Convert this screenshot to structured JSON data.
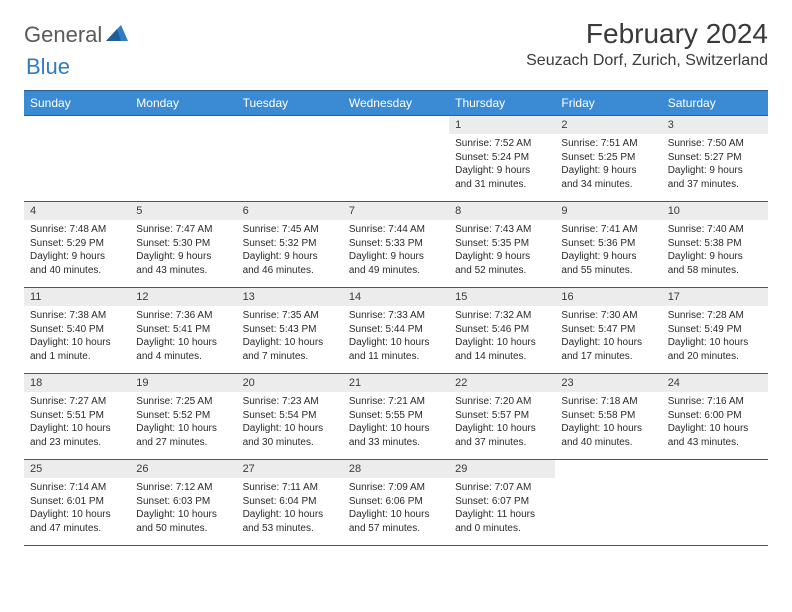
{
  "logo": {
    "text1": "General",
    "text2": "Blue"
  },
  "title": "February 2024",
  "location": "Seuzach Dorf, Zurich, Switzerland",
  "colors": {
    "header_bg": "#3b8bd4",
    "header_text": "#ffffff",
    "border": "#2b5e8e",
    "daynum_bg": "#ececec",
    "body_text": "#2a2a2a",
    "logo_gray": "#5a5a5a",
    "logo_blue": "#2f7cc4"
  },
  "day_headers": [
    "Sunday",
    "Monday",
    "Tuesday",
    "Wednesday",
    "Thursday",
    "Friday",
    "Saturday"
  ],
  "weeks": [
    [
      null,
      null,
      null,
      null,
      {
        "n": "1",
        "sr": "7:52 AM",
        "ss": "5:24 PM",
        "dl": "9 hours and 31 minutes."
      },
      {
        "n": "2",
        "sr": "7:51 AM",
        "ss": "5:25 PM",
        "dl": "9 hours and 34 minutes."
      },
      {
        "n": "3",
        "sr": "7:50 AM",
        "ss": "5:27 PM",
        "dl": "9 hours and 37 minutes."
      }
    ],
    [
      {
        "n": "4",
        "sr": "7:48 AM",
        "ss": "5:29 PM",
        "dl": "9 hours and 40 minutes."
      },
      {
        "n": "5",
        "sr": "7:47 AM",
        "ss": "5:30 PM",
        "dl": "9 hours and 43 minutes."
      },
      {
        "n": "6",
        "sr": "7:45 AM",
        "ss": "5:32 PM",
        "dl": "9 hours and 46 minutes."
      },
      {
        "n": "7",
        "sr": "7:44 AM",
        "ss": "5:33 PM",
        "dl": "9 hours and 49 minutes."
      },
      {
        "n": "8",
        "sr": "7:43 AM",
        "ss": "5:35 PM",
        "dl": "9 hours and 52 minutes."
      },
      {
        "n": "9",
        "sr": "7:41 AM",
        "ss": "5:36 PM",
        "dl": "9 hours and 55 minutes."
      },
      {
        "n": "10",
        "sr": "7:40 AM",
        "ss": "5:38 PM",
        "dl": "9 hours and 58 minutes."
      }
    ],
    [
      {
        "n": "11",
        "sr": "7:38 AM",
        "ss": "5:40 PM",
        "dl": "10 hours and 1 minute."
      },
      {
        "n": "12",
        "sr": "7:36 AM",
        "ss": "5:41 PM",
        "dl": "10 hours and 4 minutes."
      },
      {
        "n": "13",
        "sr": "7:35 AM",
        "ss": "5:43 PM",
        "dl": "10 hours and 7 minutes."
      },
      {
        "n": "14",
        "sr": "7:33 AM",
        "ss": "5:44 PM",
        "dl": "10 hours and 11 minutes."
      },
      {
        "n": "15",
        "sr": "7:32 AM",
        "ss": "5:46 PM",
        "dl": "10 hours and 14 minutes."
      },
      {
        "n": "16",
        "sr": "7:30 AM",
        "ss": "5:47 PM",
        "dl": "10 hours and 17 minutes."
      },
      {
        "n": "17",
        "sr": "7:28 AM",
        "ss": "5:49 PM",
        "dl": "10 hours and 20 minutes."
      }
    ],
    [
      {
        "n": "18",
        "sr": "7:27 AM",
        "ss": "5:51 PM",
        "dl": "10 hours and 23 minutes."
      },
      {
        "n": "19",
        "sr": "7:25 AM",
        "ss": "5:52 PM",
        "dl": "10 hours and 27 minutes."
      },
      {
        "n": "20",
        "sr": "7:23 AM",
        "ss": "5:54 PM",
        "dl": "10 hours and 30 minutes."
      },
      {
        "n": "21",
        "sr": "7:21 AM",
        "ss": "5:55 PM",
        "dl": "10 hours and 33 minutes."
      },
      {
        "n": "22",
        "sr": "7:20 AM",
        "ss": "5:57 PM",
        "dl": "10 hours and 37 minutes."
      },
      {
        "n": "23",
        "sr": "7:18 AM",
        "ss": "5:58 PM",
        "dl": "10 hours and 40 minutes."
      },
      {
        "n": "24",
        "sr": "7:16 AM",
        "ss": "6:00 PM",
        "dl": "10 hours and 43 minutes."
      }
    ],
    [
      {
        "n": "25",
        "sr": "7:14 AM",
        "ss": "6:01 PM",
        "dl": "10 hours and 47 minutes."
      },
      {
        "n": "26",
        "sr": "7:12 AM",
        "ss": "6:03 PM",
        "dl": "10 hours and 50 minutes."
      },
      {
        "n": "27",
        "sr": "7:11 AM",
        "ss": "6:04 PM",
        "dl": "10 hours and 53 minutes."
      },
      {
        "n": "28",
        "sr": "7:09 AM",
        "ss": "6:06 PM",
        "dl": "10 hours and 57 minutes."
      },
      {
        "n": "29",
        "sr": "7:07 AM",
        "ss": "6:07 PM",
        "dl": "11 hours and 0 minutes."
      },
      null,
      null
    ]
  ],
  "labels": {
    "sunrise": "Sunrise:",
    "sunset": "Sunset:",
    "daylight": "Daylight:"
  }
}
